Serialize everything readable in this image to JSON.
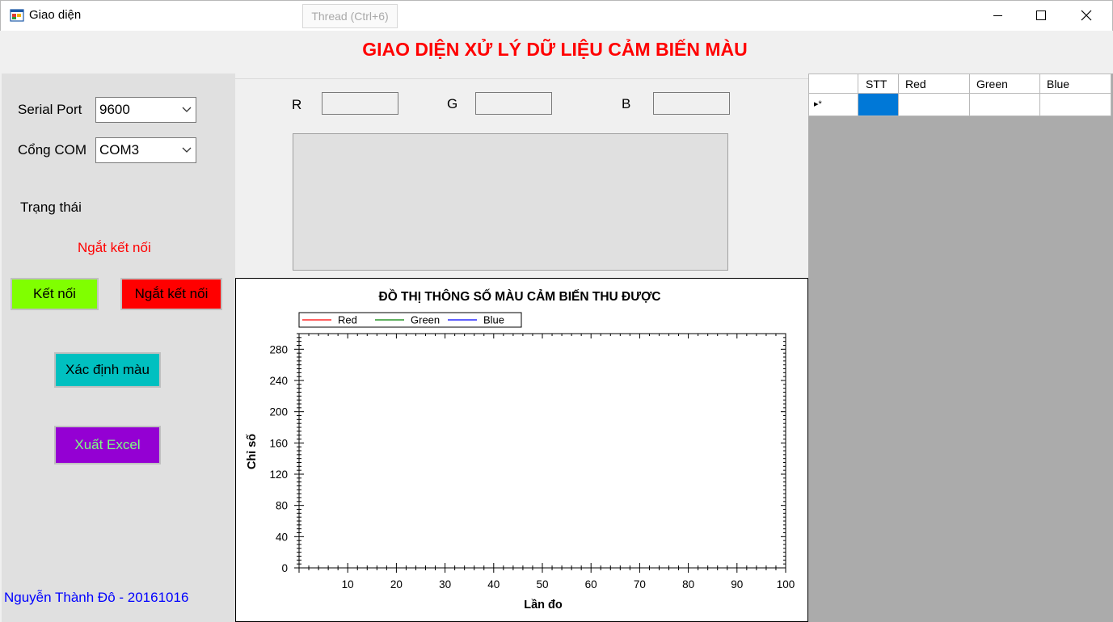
{
  "window": {
    "title": "Giao diện",
    "thread_button": "Thread (Ctrl+6)",
    "controls": [
      "minimize-icon",
      "maximize-icon",
      "close-icon"
    ]
  },
  "heading": "GIAO DIỆN XỬ LÝ DỮ LIỆU CẢM BIẾN MÀU",
  "left_panel": {
    "serial_port_label": "Serial Port",
    "serial_port_value": "9600",
    "com_label": "Cổng COM",
    "com_value": "COM3",
    "status_label": "Trạng thái",
    "status_value": "Ngắt kết nối",
    "connect_button": "Kết nối",
    "disconnect_button": "Ngắt kết nối",
    "identify_button": "Xác định màu",
    "export_button": "Xuất Excel",
    "author": "Nguyễn Thành Đô - 20161016"
  },
  "rgb": {
    "r_label": "R",
    "g_label": "G",
    "b_label": "B",
    "r_value": "",
    "g_value": "",
    "b_value": ""
  },
  "colors": {
    "heading": "#ff0000",
    "connect_bg": "#80ff00",
    "disconnect_bg": "#ff0000",
    "identify_bg": "#00c0c0",
    "export_bg": "#9400d3",
    "export_text": "#7fff7f",
    "author_text": "#0000ff",
    "grid_selected": "#0078d7"
  },
  "grid": {
    "columns": [
      "STT",
      "Red",
      "Green",
      "Blue"
    ],
    "new_row_marker": "▸*"
  },
  "chart_data": {
    "type": "line",
    "title": "ĐỒ THỊ THÔNG SỐ MÀU CẢM BIẾN THU ĐƯỢC",
    "xlabel": "Lần đo",
    "ylabel": "Chỉ số",
    "xlim": [
      0,
      100
    ],
    "ylim": [
      0,
      300
    ],
    "x_ticks": [
      "10",
      "20",
      "30",
      "40",
      "50",
      "60",
      "70",
      "80",
      "90",
      "100"
    ],
    "y_ticks": [
      "0",
      "40",
      "80",
      "120",
      "160",
      "200",
      "240",
      "280"
    ],
    "legend_position": "top-left",
    "series": [
      {
        "name": "Red",
        "color": "#ff0000",
        "values": []
      },
      {
        "name": "Green",
        "color": "#008000",
        "values": []
      },
      {
        "name": "Blue",
        "color": "#0000ff",
        "values": []
      }
    ]
  }
}
